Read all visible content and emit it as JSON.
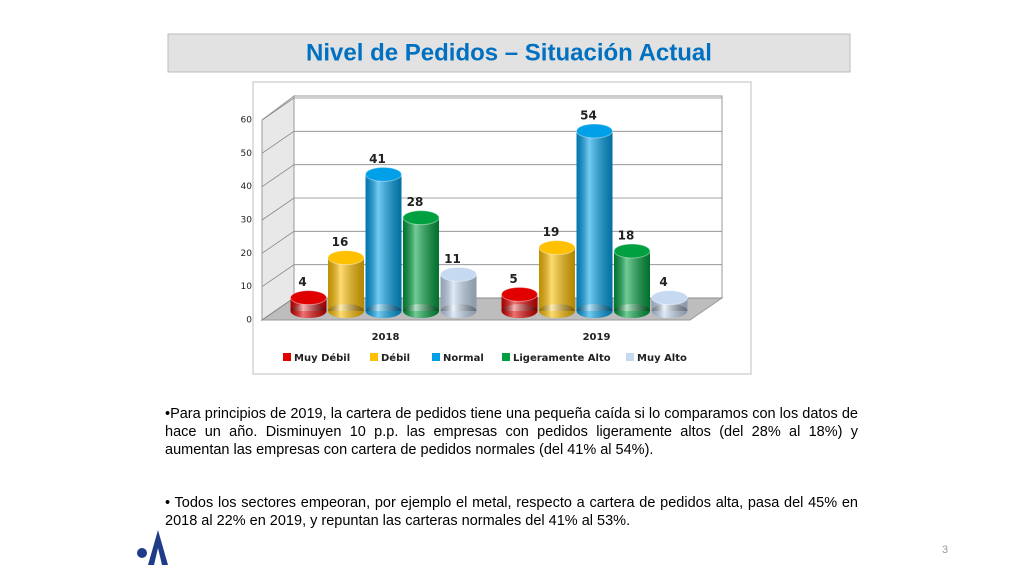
{
  "header": {
    "title": "Nivel de Pedidos – Situación Actual"
  },
  "chart_data": {
    "type": "bar",
    "categories": [
      "2018",
      "2019"
    ],
    "series": [
      {
        "name": "Muy Débil",
        "color": "#e00000",
        "values": [
          4,
          5
        ]
      },
      {
        "name": "Débil",
        "color": "#ffc000",
        "values": [
          16,
          19
        ]
      },
      {
        "name": "Normal",
        "color": "#00a0e8",
        "values": [
          41,
          54
        ]
      },
      {
        "name": "Ligeramente Alto",
        "color": "#00a040",
        "values": [
          28,
          18
        ]
      },
      {
        "name": "Muy Alto",
        "color": "#c5d9f1",
        "values": [
          11,
          4
        ]
      }
    ],
    "ylim": [
      0,
      60
    ],
    "yticks": [
      0,
      10,
      20,
      30,
      40,
      50,
      60
    ],
    "grid": true,
    "legend": "bottom"
  },
  "body": {
    "paragraphs": [
      "•Para principios de 2019, la cartera de pedidos tiene una pequeña caída si lo comparamos con los datos de hace un año. Disminuyen 10 p.p. las empresas con pedidos ligeramente altos (del 28% al 18%) y aumentan las empresas con cartera de pedidos normales (del 41% al 54%).",
      "• Todos los sectores empeoran, por ejemplo el metal, respecto a cartera de pedidos alta, pasa del 45% en 2018  al 22% en 2019, y repuntan las carteras normales del 41% al 53%."
    ]
  },
  "footer": {
    "page": "3"
  }
}
